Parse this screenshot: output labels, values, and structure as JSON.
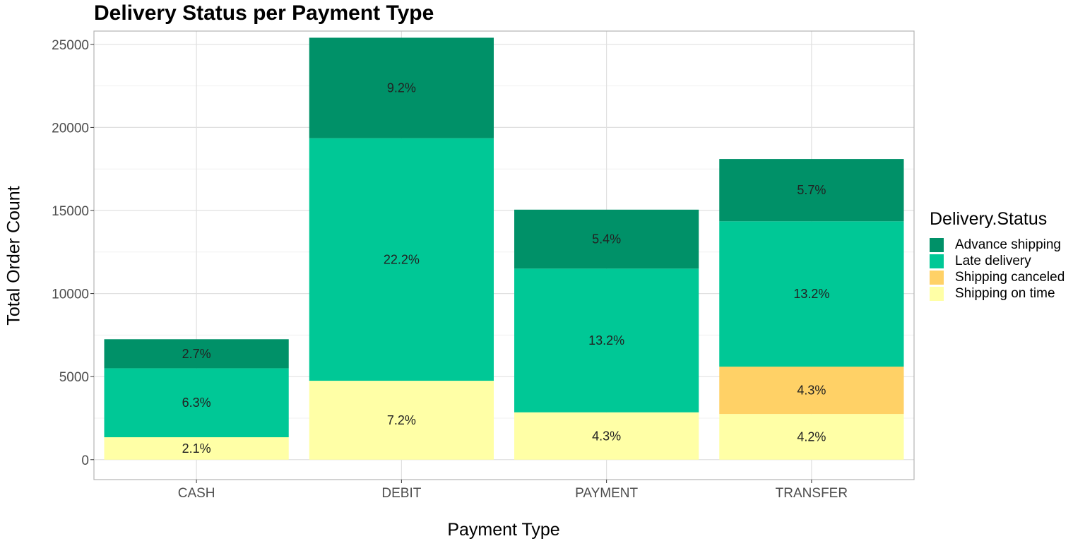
{
  "chart_data": {
    "type": "bar",
    "stacked": true,
    "title": "Delivery Status per Payment Type",
    "xlabel": "Payment Type",
    "ylabel": "Total Order Count",
    "categories": [
      "CASH",
      "DEBIT",
      "PAYMENT",
      "TRANSFER"
    ],
    "ylim": [
      -1200,
      25800
    ],
    "yticks": [
      0,
      5000,
      10000,
      15000,
      20000,
      25000
    ],
    "grid": true,
    "legend": {
      "title": "Delivery.Status",
      "position": "right"
    },
    "series": [
      {
        "name": "Shipping on time",
        "color": "#FFFFA6",
        "values": [
          1350,
          4750,
          2850,
          2750
        ],
        "labels": [
          "2.1%",
          "7.2%",
          "4.3%",
          "4.2%"
        ]
      },
      {
        "name": "Shipping canceled",
        "color": "#FFD166",
        "values": [
          0,
          0,
          0,
          2850
        ],
        "labels": [
          "",
          "",
          "",
          "4.3%"
        ]
      },
      {
        "name": "Late delivery",
        "color": "#00C896",
        "values": [
          4150,
          14600,
          8650,
          8750
        ],
        "labels": [
          "6.3%",
          "22.2%",
          "13.2%",
          "13.2%"
        ]
      },
      {
        "name": "Advance shipping",
        "color": "#009168",
        "values": [
          1750,
          6050,
          3550,
          3750
        ],
        "labels": [
          "2.7%",
          "9.2%",
          "5.4%",
          "5.7%"
        ]
      }
    ],
    "legend_order": [
      "Advance shipping",
      "Late delivery",
      "Shipping canceled",
      "Shipping on time"
    ]
  }
}
